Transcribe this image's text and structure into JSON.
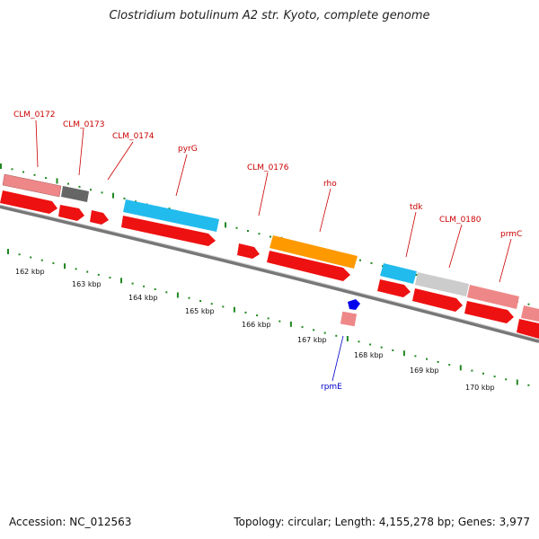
{
  "title": "Clostridium botulinum A2 str. Kyoto, complete genome",
  "footer": {
    "accession": "Accession: NC_012563",
    "topology": "Topology: circular; Length: 4,155,278 bp; Genes: 3,977"
  },
  "colors": {
    "cds": "#ee1111",
    "gene_pink": "#ee8888",
    "gene_gray": "#666666",
    "gene_lightgray": "#cccccc",
    "gene_cyan": "#22bbee",
    "gene_orange": "#ff9900",
    "rna_blue": "#0000ee",
    "tick_green": "#228822",
    "label_red": "#cc0000",
    "label_blue": "#0000cc",
    "backbone": "#777777"
  },
  "gene_labels": [
    "CLM_0172",
    "CLM_0173",
    "CLM_0174",
    "pyrG",
    "CLM_0176",
    "rho",
    "tdk",
    "CLM_0180",
    "prmC",
    "rpmE"
  ],
  "kbp_labels": [
    "162 kbp",
    "163 kbp",
    "164 kbp",
    "165 kbp",
    "166 kbp",
    "167 kbp",
    "168 kbp",
    "169 kbp",
    "170 kbp"
  ]
}
